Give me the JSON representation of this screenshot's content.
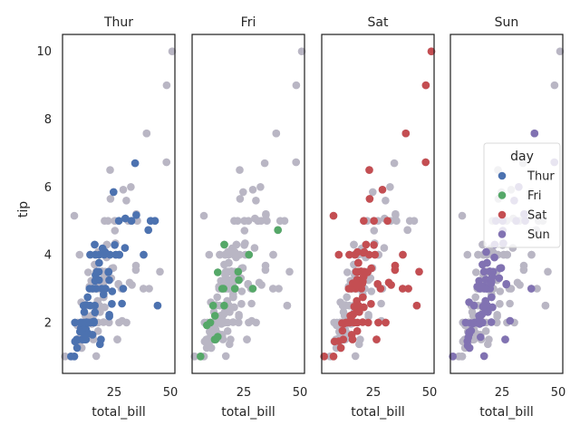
{
  "chart_data": {
    "type": "scatter",
    "xlabel": "total_bill",
    "ylabel": "tip",
    "xlim": [
      2,
      52
    ],
    "ylim": [
      0.5,
      10.5
    ],
    "xticks": [
      25,
      50
    ],
    "yticks": [
      2,
      4,
      6,
      8,
      10
    ],
    "background_color": "#b9b6c4",
    "legend": {
      "title": "day",
      "placement": "right"
    },
    "panels": [
      {
        "title": "Thur",
        "day": "Thur",
        "color": "#4c72b0"
      },
      {
        "title": "Fri",
        "day": "Fri",
        "color": "#55a868"
      },
      {
        "title": "Sat",
        "day": "Sat",
        "color": "#c44e52"
      },
      {
        "title": "Sun",
        "day": "Sun",
        "color": "#8172b2"
      }
    ],
    "series": [
      {
        "name": "Thur",
        "color": "#4c72b0",
        "points": [
          [
            27.2,
            4.0
          ],
          [
            22.8,
            2.23
          ],
          [
            19.44,
            3.0
          ],
          [
            16.66,
            3.4
          ],
          [
            10.07,
            1.83
          ],
          [
            32.68,
            5.0
          ],
          [
            15.98,
            2.03
          ],
          [
            34.83,
            5.17
          ],
          [
            13.03,
            2.0
          ],
          [
            18.28,
            4.0
          ],
          [
            24.71,
            5.85
          ],
          [
            21.16,
            3.0
          ],
          [
            28.97,
            3.0
          ],
          [
            22.49,
            3.5
          ],
          [
            5.75,
            1.0
          ],
          [
            16.32,
            4.3
          ],
          [
            22.75,
            3.25
          ],
          [
            40.17,
            4.73
          ],
          [
            27.28,
            4.0
          ],
          [
            12.03,
            1.5
          ],
          [
            21.01,
            3.0
          ],
          [
            12.46,
            1.5
          ],
          [
            11.35,
            2.5
          ],
          [
            15.38,
            3.0
          ],
          [
            44.3,
            2.5
          ],
          [
            22.42,
            3.48
          ],
          [
            20.92,
            4.08
          ],
          [
            15.36,
            1.64
          ],
          [
            20.49,
            4.06
          ],
          [
            25.21,
            4.29
          ],
          [
            18.24,
            3.76
          ],
          [
            14.31,
            4.0
          ],
          [
            14.0,
            3.0
          ],
          [
            7.25,
            1.0
          ],
          [
            38.07,
            4.0
          ],
          [
            23.95,
            2.55
          ],
          [
            25.71,
            4.0
          ],
          [
            17.31,
            3.5
          ],
          [
            29.93,
            5.07
          ],
          [
            10.65,
            1.5
          ],
          [
            12.43,
            1.8
          ],
          [
            24.08,
            2.92
          ],
          [
            11.69,
            2.31
          ],
          [
            13.42,
            1.68
          ],
          [
            14.26,
            2.5
          ],
          [
            15.95,
            2.0
          ],
          [
            12.48,
            2.52
          ],
          [
            29.8,
            4.2
          ],
          [
            8.52,
            1.48
          ],
          [
            14.52,
            2.0
          ],
          [
            11.38,
            2.0
          ],
          [
            22.82,
            2.18
          ],
          [
            19.08,
            1.5
          ],
          [
            20.27,
            2.83
          ],
          [
            11.17,
            1.5
          ],
          [
            12.26,
            2.0
          ],
          [
            18.26,
            3.25
          ],
          [
            8.51,
            1.25
          ],
          [
            10.33,
            2.0
          ],
          [
            14.15,
            2.0
          ],
          [
            16.0,
            2.0
          ],
          [
            13.16,
            2.75
          ],
          [
            17.47,
            3.5
          ],
          [
            34.3,
            6.7
          ],
          [
            41.19,
            5.0
          ],
          [
            27.05,
            5.0
          ],
          [
            16.43,
            2.3
          ],
          [
            8.35,
            1.5
          ],
          [
            18.64,
            1.36
          ],
          [
            11.87,
            1.63
          ],
          [
            9.78,
            1.73
          ],
          [
            7.51,
            2.0
          ],
          [
            10.34,
            2.0
          ],
          [
            13.51,
            2.0
          ],
          [
            43.11,
            5.0
          ],
          [
            13.0,
            2.0
          ],
          [
            12.74,
            2.01
          ],
          [
            13.0,
            2.0
          ],
          [
            16.4,
            2.5
          ],
          [
            20.53,
            4.0
          ],
          [
            16.47,
            3.23
          ],
          [
            19.81,
            4.19
          ],
          [
            28.44,
            2.56
          ],
          [
            15.48,
            2.02
          ],
          [
            16.58,
            4.0
          ],
          [
            7.56,
            1.44
          ],
          [
            10.34,
            2.0
          ],
          [
            18.15,
            3.5
          ],
          [
            23.1,
            4.0
          ],
          [
            11.02,
            1.98
          ],
          [
            16.97,
            3.0
          ],
          [
            10.09,
            2.0
          ]
        ]
      },
      {
        "name": "Fri",
        "color": "#55a868",
        "points": [
          [
            28.97,
            3.0
          ],
          [
            22.49,
            3.5
          ],
          [
            5.75,
            1.0
          ],
          [
            16.32,
            4.3
          ],
          [
            22.75,
            3.25
          ],
          [
            40.17,
            4.73
          ],
          [
            27.28,
            4.0
          ],
          [
            12.03,
            1.5
          ],
          [
            21.01,
            3.0
          ],
          [
            12.46,
            1.5
          ],
          [
            11.35,
            2.5
          ],
          [
            15.38,
            3.0
          ],
          [
            12.16,
            2.2
          ],
          [
            13.42,
            3.48
          ],
          [
            8.58,
            1.92
          ],
          [
            15.98,
            3.0
          ],
          [
            13.42,
            1.58
          ],
          [
            16.27,
            2.5
          ],
          [
            10.09,
            2.0
          ]
        ]
      },
      {
        "name": "Sat",
        "color": "#c44e52",
        "points": [
          [
            20.65,
            3.35
          ],
          [
            17.92,
            4.08
          ],
          [
            20.29,
            2.75
          ],
          [
            15.77,
            2.23
          ],
          [
            39.42,
            7.58
          ],
          [
            19.82,
            3.18
          ],
          [
            17.81,
            2.34
          ],
          [
            13.37,
            2.0
          ],
          [
            12.69,
            2.0
          ],
          [
            21.7,
            4.3
          ],
          [
            19.65,
            3.0
          ],
          [
            9.55,
            1.45
          ],
          [
            18.35,
            2.5
          ],
          [
            15.06,
            3.0
          ],
          [
            20.69,
            2.45
          ],
          [
            17.78,
            3.27
          ],
          [
            24.06,
            3.6
          ],
          [
            16.31,
            2.0
          ],
          [
            16.93,
            3.07
          ],
          [
            18.69,
            2.31
          ],
          [
            31.27,
            5.0
          ],
          [
            16.04,
            2.24
          ],
          [
            38.01,
            3.0
          ],
          [
            26.41,
            1.5
          ],
          [
            11.24,
            1.76
          ],
          [
            48.27,
            6.73
          ],
          [
            20.29,
            3.21
          ],
          [
            13.81,
            2.0
          ],
          [
            11.02,
            1.98
          ],
          [
            18.29,
            3.76
          ],
          [
            17.59,
            2.64
          ],
          [
            20.08,
            3.15
          ],
          [
            16.45,
            2.47
          ],
          [
            3.07,
            1.0
          ],
          [
            20.23,
            2.01
          ],
          [
            15.01,
            2.09
          ],
          [
            12.02,
            1.97
          ],
          [
            17.07,
            3.0
          ],
          [
            26.86,
            3.14
          ],
          [
            25.28,
            5.0
          ],
          [
            14.73,
            2.2
          ],
          [
            10.51,
            1.25
          ],
          [
            17.92,
            3.08
          ],
          [
            44.3,
            2.5
          ],
          [
            22.42,
            3.48
          ],
          [
            20.92,
            4.08
          ],
          [
            15.36,
            1.64
          ],
          [
            20.49,
            4.06
          ],
          [
            25.21,
            4.29
          ],
          [
            18.24,
            3.76
          ],
          [
            14.31,
            4.0
          ],
          [
            14.0,
            3.0
          ],
          [
            7.25,
            1.0
          ],
          [
            38.07,
            4.0
          ],
          [
            23.95,
            2.55
          ],
          [
            25.71,
            4.0
          ],
          [
            17.31,
            3.5
          ],
          [
            29.03,
            5.92
          ],
          [
            27.18,
            2.0
          ],
          [
            22.67,
            2.0
          ],
          [
            17.82,
            1.75
          ],
          [
            50.81,
            10.0
          ],
          [
            15.81,
            3.16
          ],
          [
            7.25,
            5.15
          ],
          [
            31.85,
            3.18
          ],
          [
            16.82,
            4.0
          ],
          [
            32.9,
            3.11
          ],
          [
            17.89,
            2.0
          ],
          [
            14.48,
            2.0
          ],
          [
            9.6,
            4.0
          ],
          [
            34.63,
            3.55
          ],
          [
            34.65,
            3.68
          ],
          [
            23.33,
            5.65
          ],
          [
            45.35,
            3.5
          ],
          [
            23.17,
            6.5
          ],
          [
            40.55,
            3.0
          ],
          [
            20.69,
            5.0
          ],
          [
            20.9,
            3.5
          ],
          [
            30.46,
            2.0
          ],
          [
            18.15,
            3.5
          ],
          [
            23.1,
            4.0
          ],
          [
            15.69,
            1.5
          ],
          [
            19.49,
            3.51
          ],
          [
            48.33,
            9.0
          ],
          [
            28.15,
            3.0
          ],
          [
            11.59,
            1.5
          ],
          [
            7.74,
            1.44
          ]
        ]
      },
      {
        "name": "Sun",
        "color": "#8172b2",
        "points": [
          [
            16.99,
            1.01
          ],
          [
            10.34,
            1.66
          ],
          [
            21.01,
            3.5
          ],
          [
            23.68,
            3.31
          ],
          [
            24.59,
            3.61
          ],
          [
            25.29,
            4.71
          ],
          [
            8.77,
            2.0
          ],
          [
            26.88,
            3.12
          ],
          [
            15.04,
            1.96
          ],
          [
            14.78,
            3.23
          ],
          [
            10.27,
            1.71
          ],
          [
            35.26,
            5.0
          ],
          [
            15.42,
            1.57
          ],
          [
            18.43,
            3.0
          ],
          [
            14.83,
            3.02
          ],
          [
            21.58,
            3.92
          ],
          [
            10.33,
            1.67
          ],
          [
            16.29,
            3.71
          ],
          [
            16.97,
            3.5
          ],
          [
            20.65,
            3.35
          ],
          [
            17.92,
            4.08
          ],
          [
            20.29,
            2.75
          ],
          [
            15.77,
            2.23
          ],
          [
            39.42,
            7.58
          ],
          [
            19.82,
            3.18
          ],
          [
            17.81,
            2.34
          ],
          [
            13.37,
            2.0
          ],
          [
            12.69,
            2.0
          ],
          [
            21.7,
            4.3
          ],
          [
            19.65,
            3.0
          ],
          [
            9.55,
            1.45
          ],
          [
            18.35,
            2.5
          ],
          [
            15.06,
            3.0
          ],
          [
            20.69,
            2.45
          ],
          [
            17.78,
            3.27
          ],
          [
            24.06,
            3.6
          ],
          [
            16.31,
            2.0
          ],
          [
            16.93,
            3.07
          ],
          [
            18.69,
            2.31
          ],
          [
            31.27,
            5.0
          ],
          [
            16.04,
            2.24
          ],
          [
            17.46,
            2.54
          ],
          [
            13.94,
            3.06
          ],
          [
            9.68,
            1.32
          ],
          [
            30.4,
            5.6
          ],
          [
            18.29,
            3.0
          ],
          [
            22.23,
            5.0
          ],
          [
            32.4,
            6.0
          ],
          [
            28.55,
            2.05
          ],
          [
            18.04,
            3.0
          ],
          [
            12.54,
            2.5
          ],
          [
            10.29,
            2.6
          ],
          [
            34.81,
            5.2
          ],
          [
            9.94,
            1.56
          ],
          [
            25.56,
            4.34
          ],
          [
            19.49,
            3.51
          ],
          [
            38.01,
            3.0
          ],
          [
            26.41,
            1.5
          ],
          [
            11.24,
            1.76
          ],
          [
            48.27,
            6.73
          ],
          [
            20.29,
            3.21
          ],
          [
            13.81,
            2.0
          ],
          [
            11.02,
            1.98
          ],
          [
            18.29,
            3.76
          ],
          [
            17.59,
            2.64
          ],
          [
            20.08,
            3.15
          ],
          [
            16.45,
            2.47
          ],
          [
            3.07,
            1.0
          ],
          [
            20.23,
            2.01
          ],
          [
            15.01,
            2.09
          ],
          [
            12.02,
            1.97
          ],
          [
            17.07,
            3.0
          ],
          [
            26.86,
            3.14
          ],
          [
            25.28,
            5.0
          ],
          [
            14.73,
            2.2
          ],
          [
            10.51,
            1.25
          ]
        ]
      }
    ]
  }
}
